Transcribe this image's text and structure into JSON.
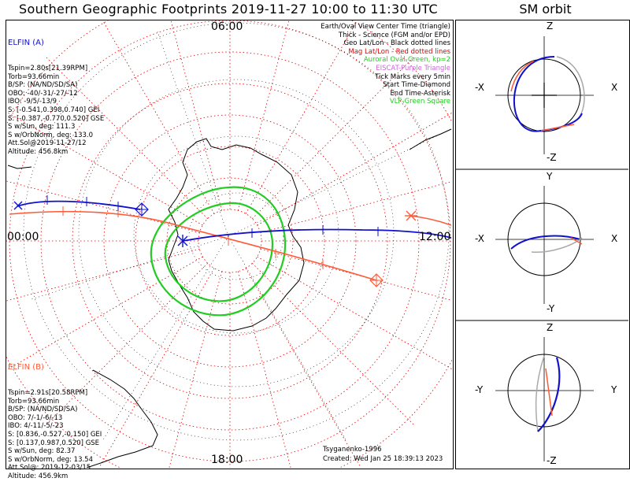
{
  "title": "Southern Geographic Footprints 2019-11-27 10:00 to 11:30 UTC",
  "orbit_title": "SM orbit",
  "clock_labels": {
    "top": "06:00",
    "left": "00:00",
    "right": "12:00",
    "bottom": "18:00"
  },
  "elfin_a": {
    "name": "ELFIN (A)",
    "color": "#1010d0",
    "lines": [
      "Tspin=2.80s[21.39RPM]",
      "Torb=93.66min",
      "B/SP: (NA/ND/SD/SA)",
      "OBO: -40/-31/-27/-12",
      "IBO: -9/5/-13/9",
      "S: [-0.541,0.398,0.740] GEI",
      "S: [-0.387,-0.770,0.520] GSE",
      "S w/Sun, deg: 111.3",
      "S w/OrbNorm, deg: 133.0",
      "Att.Sol@2019-11-27/12",
      "Altitude: 456.8km"
    ]
  },
  "elfin_b": {
    "name": "ELFIN (B)",
    "color": "#ff5a36",
    "lines": [
      "Tspin=2.91s[20.58RPM]",
      "Torb=93.66min",
      "B/SP: (NA/ND/SD/SA)",
      "OBO: 7/-1/-6/-13",
      "IBO: 4/-11/-5/-23",
      "S: [0.836,-0.527,-0.150] GEI",
      "S: [0.137,0.987,0.520] GSE",
      "S w/Sun, deg: 82.37",
      "S w/OrbNorm, deg: 13.54",
      "Att.Sol@: 2019-12-03/15",
      "Altitude: 456.9km"
    ]
  },
  "legend": [
    {
      "text": "Earth/Oval View Center Time (triangle)",
      "color": "#000000"
    },
    {
      "text": "Thick - Science (FGM and/or EPD)",
      "color": "#000000"
    },
    {
      "text": "Geo Lat/Lon - Black dotted lines",
      "color": "#000000"
    },
    {
      "text": "Mag Lat/Lon - Red dotted lines",
      "color": "#e00000"
    },
    {
      "text": "Auroral Oval-Green, kp=2",
      "color": "#22cc22"
    },
    {
      "text": "EISCAT-Purple Triangle",
      "color": "#cc66dd"
    },
    {
      "text": "Tick Marks every 5min",
      "color": "#000000"
    },
    {
      "text": "Start Time-Diamond",
      "color": "#000000"
    },
    {
      "text": "End Time-Asterisk",
      "color": "#000000"
    },
    {
      "text": "VLF-Green Square",
      "color": "#22cc22"
    }
  ],
  "credits": {
    "model": "Tsyganenko-1996",
    "created": "Created: Wed Jan 25 18:39:13 2023"
  },
  "orbit_panels": [
    {
      "top": "Z",
      "bottom": "-Z",
      "left": "-X",
      "right": "X"
    },
    {
      "top": "Y",
      "bottom": "-Y",
      "left": "-X",
      "right": "X"
    },
    {
      "top": "Z",
      "bottom": "-Z",
      "left": "-Y",
      "right": "Y"
    }
  ],
  "colors": {
    "elfin_a": "#1010d0",
    "elfin_b": "#ff5a36",
    "oval": "#22cc22",
    "mag_grid": "#e00000"
  }
}
